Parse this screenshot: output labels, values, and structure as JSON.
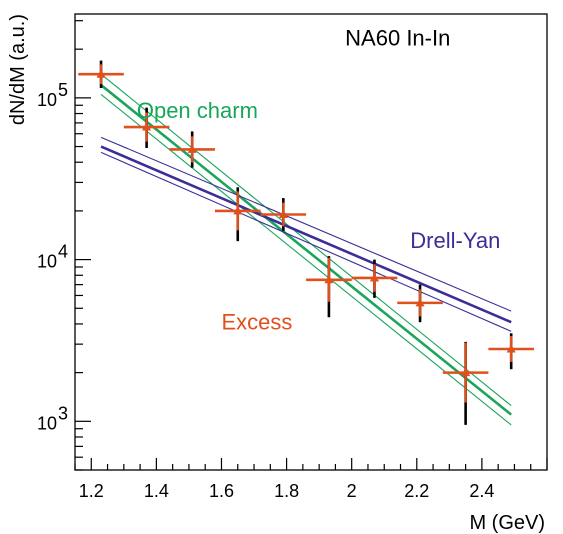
{
  "chart_data": {
    "type": "scatter",
    "title": "NA60 In-In",
    "xlabel": "M (GeV)",
    "ylabel": "dN/dM (a.u.)",
    "xlim": [
      1.15,
      2.6
    ],
    "ylim": [
      500,
      330000
    ],
    "yscale": "log",
    "xticks": [
      "1.2",
      "1.4",
      "1.6",
      "1.8",
      "2",
      "2.2",
      "2.4"
    ],
    "xtick_values": [
      1.2,
      1.4,
      1.6,
      1.8,
      2.0,
      2.2,
      2.4
    ],
    "yticks": [
      {
        "value": 1000,
        "base": "10",
        "exp": "3"
      },
      {
        "value": 10000,
        "base": "10",
        "exp": "4"
      },
      {
        "value": 100000,
        "base": "10",
        "exp": "5"
      }
    ],
    "grid": false,
    "colors": {
      "excess": "#e0501c",
      "open_charm": "#1aa65a",
      "drell_yan": "#3a2e98",
      "errorbar": "#000000"
    },
    "series": [
      {
        "name": "Excess",
        "kind": "points",
        "points": [
          {
            "x": 1.23,
            "y": 140000,
            "xerr": 0.07,
            "ylo": 115000,
            "yhi": 170000
          },
          {
            "x": 1.37,
            "y": 66000,
            "xerr": 0.07,
            "ylo": 49000,
            "yhi": 87000
          },
          {
            "x": 1.51,
            "y": 48000,
            "xerr": 0.07,
            "ylo": 37000,
            "yhi": 62000
          },
          {
            "x": 1.65,
            "y": 20000,
            "xerr": 0.07,
            "ylo": 13000,
            "yhi": 28000
          },
          {
            "x": 1.79,
            "y": 19000,
            "xerr": 0.07,
            "ylo": 15000,
            "yhi": 24000
          },
          {
            "x": 1.93,
            "y": 7500,
            "xerr": 0.07,
            "ylo": 4400,
            "yhi": 10500
          },
          {
            "x": 2.07,
            "y": 7700,
            "xerr": 0.07,
            "ylo": 5800,
            "yhi": 10000
          },
          {
            "x": 2.21,
            "y": 5400,
            "xerr": 0.07,
            "ylo": 4100,
            "yhi": 7000
          },
          {
            "x": 2.35,
            "y": 2000,
            "xerr": 0.07,
            "ylo": 950,
            "yhi": 3100
          },
          {
            "x": 2.49,
            "y": 2800,
            "xerr": 0.07,
            "ylo": 2100,
            "yhi": 3500
          }
        ]
      },
      {
        "name": "Open charm",
        "kind": "band",
        "x": [
          1.23,
          2.49
        ],
        "central": [
          120000,
          1100
        ],
        "upper": [
          140000,
          1250
        ],
        "lower": [
          105000,
          950
        ]
      },
      {
        "name": "Drell-Yan",
        "kind": "band",
        "x": [
          1.23,
          2.49
        ],
        "central": [
          50000,
          4100
        ],
        "upper": [
          57000,
          4800
        ],
        "lower": [
          46000,
          3600
        ]
      }
    ],
    "annotations": [
      {
        "text": "NA60 In-In",
        "x": 1.98,
        "y": 210000,
        "color": "#000000"
      },
      {
        "text": "Open charm",
        "x": 1.34,
        "y": 75000,
        "color": "#1aa65a",
        "ref": "open_charm"
      },
      {
        "text": "Drell-Yan",
        "x": 2.18,
        "y": 11800,
        "color": "#3a2e98",
        "ref": "drell_yan"
      },
      {
        "text": "Excess",
        "x": 1.6,
        "y": 3700,
        "color": "#e0501c",
        "ref": "excess"
      }
    ]
  }
}
